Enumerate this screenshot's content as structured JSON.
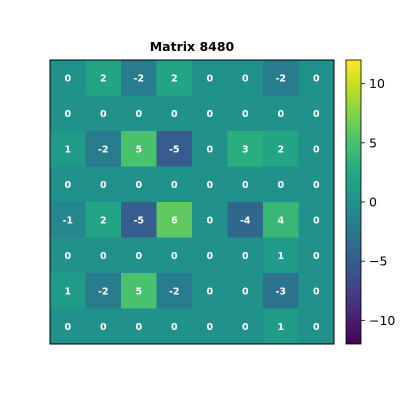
{
  "chart_data": {
    "type": "heatmap",
    "title": "Matrix 8480",
    "rows": 8,
    "cols": 8,
    "values": [
      [
        0,
        2,
        -2,
        2,
        0,
        0,
        -2,
        0
      ],
      [
        0,
        0,
        0,
        0,
        0,
        0,
        0,
        0
      ],
      [
        1,
        -2,
        5,
        -5,
        0,
        3,
        2,
        0
      ],
      [
        0,
        0,
        0,
        0,
        0,
        0,
        0,
        0
      ],
      [
        -1,
        2,
        -5,
        6,
        0,
        -4,
        4,
        0
      ],
      [
        0,
        0,
        0,
        0,
        0,
        0,
        1,
        0
      ],
      [
        1,
        -2,
        5,
        -2,
        0,
        0,
        -3,
        0
      ],
      [
        0,
        0,
        0,
        0,
        0,
        0,
        1,
        0
      ]
    ],
    "color_range": [
      -12,
      12
    ],
    "colormap": "viridis",
    "colorbar_ticks": [
      10,
      5,
      0,
      -5,
      -10
    ],
    "colorbar_tick_labels": [
      "10",
      "5",
      "0",
      "−5",
      "−10"
    ],
    "cell_label_color": "#ffffff",
    "grid": false,
    "axis_ticks_visible": false
  }
}
